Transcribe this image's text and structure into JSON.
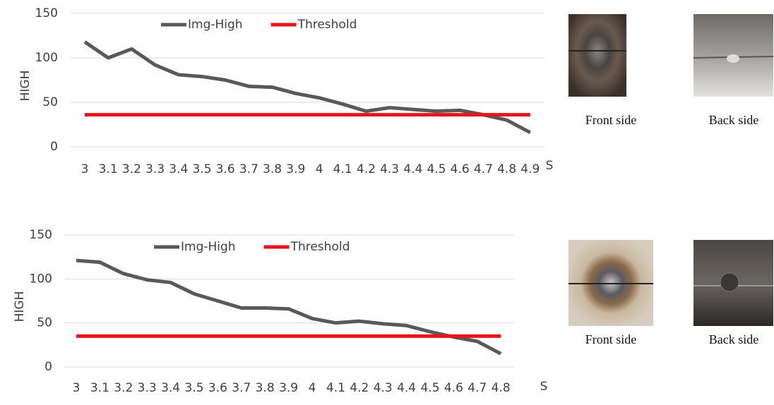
{
  "chart_data": [
    {
      "type": "line",
      "y_label": "HIGH",
      "x_label": "S",
      "categories": [
        "3",
        "3.1",
        "3.2",
        "3.3",
        "3.4",
        "3.5",
        "3.6",
        "3.7",
        "3.8",
        "3.9",
        "4",
        "4.1",
        "4.2",
        "4.3",
        "4.4",
        "4.5",
        "4.6",
        "4.7",
        "4.8",
        "4.9"
      ],
      "series": [
        {
          "name": "Img-High",
          "color": "#595959",
          "values": [
            118,
            100,
            110,
            92,
            81,
            79,
            75,
            68,
            67,
            60,
            55,
            48,
            40,
            44,
            42,
            40,
            41,
            36,
            30,
            16
          ]
        },
        {
          "name": "Threshold",
          "color": "#e8141b",
          "values": [
            36,
            36,
            36,
            36,
            36,
            36,
            36,
            36,
            36,
            36,
            36,
            36,
            36,
            36,
            36,
            36,
            36,
            36,
            36,
            36
          ]
        }
      ],
      "ylim": [
        0,
        150
      ],
      "yticks": [
        0,
        50,
        100,
        150
      ],
      "grid": true,
      "legend": "upper center"
    },
    {
      "type": "line",
      "y_label": "HIGH",
      "x_label": "S",
      "categories": [
        "3",
        "3.1",
        "3.2",
        "3.3",
        "3.4",
        "3.5",
        "3.6",
        "3.7",
        "3.8",
        "3.9",
        "4",
        "4.1",
        "4.2",
        "4.3",
        "4.4",
        "4.5",
        "4.6",
        "4.7",
        "4.8"
      ],
      "series": [
        {
          "name": "Img-High",
          "color": "#595959",
          "values": [
            121,
            119,
            106,
            99,
            96,
            83,
            75,
            67,
            67,
            66,
            55,
            50,
            52,
            49,
            47,
            40,
            34,
            29,
            15
          ]
        },
        {
          "name": "Threshold",
          "color": "#e8141b",
          "values": [
            35,
            35,
            35,
            35,
            35,
            35,
            35,
            35,
            35,
            35,
            35,
            35,
            35,
            35,
            35,
            35,
            35,
            35,
            35
          ]
        }
      ],
      "ylim": [
        0,
        150
      ],
      "yticks": [
        0,
        50,
        100,
        150
      ],
      "grid": true,
      "legend": "upper center"
    }
  ],
  "photos": [
    [
      "Front side",
      "Back side"
    ],
    [
      "Front side",
      "Back side"
    ]
  ]
}
